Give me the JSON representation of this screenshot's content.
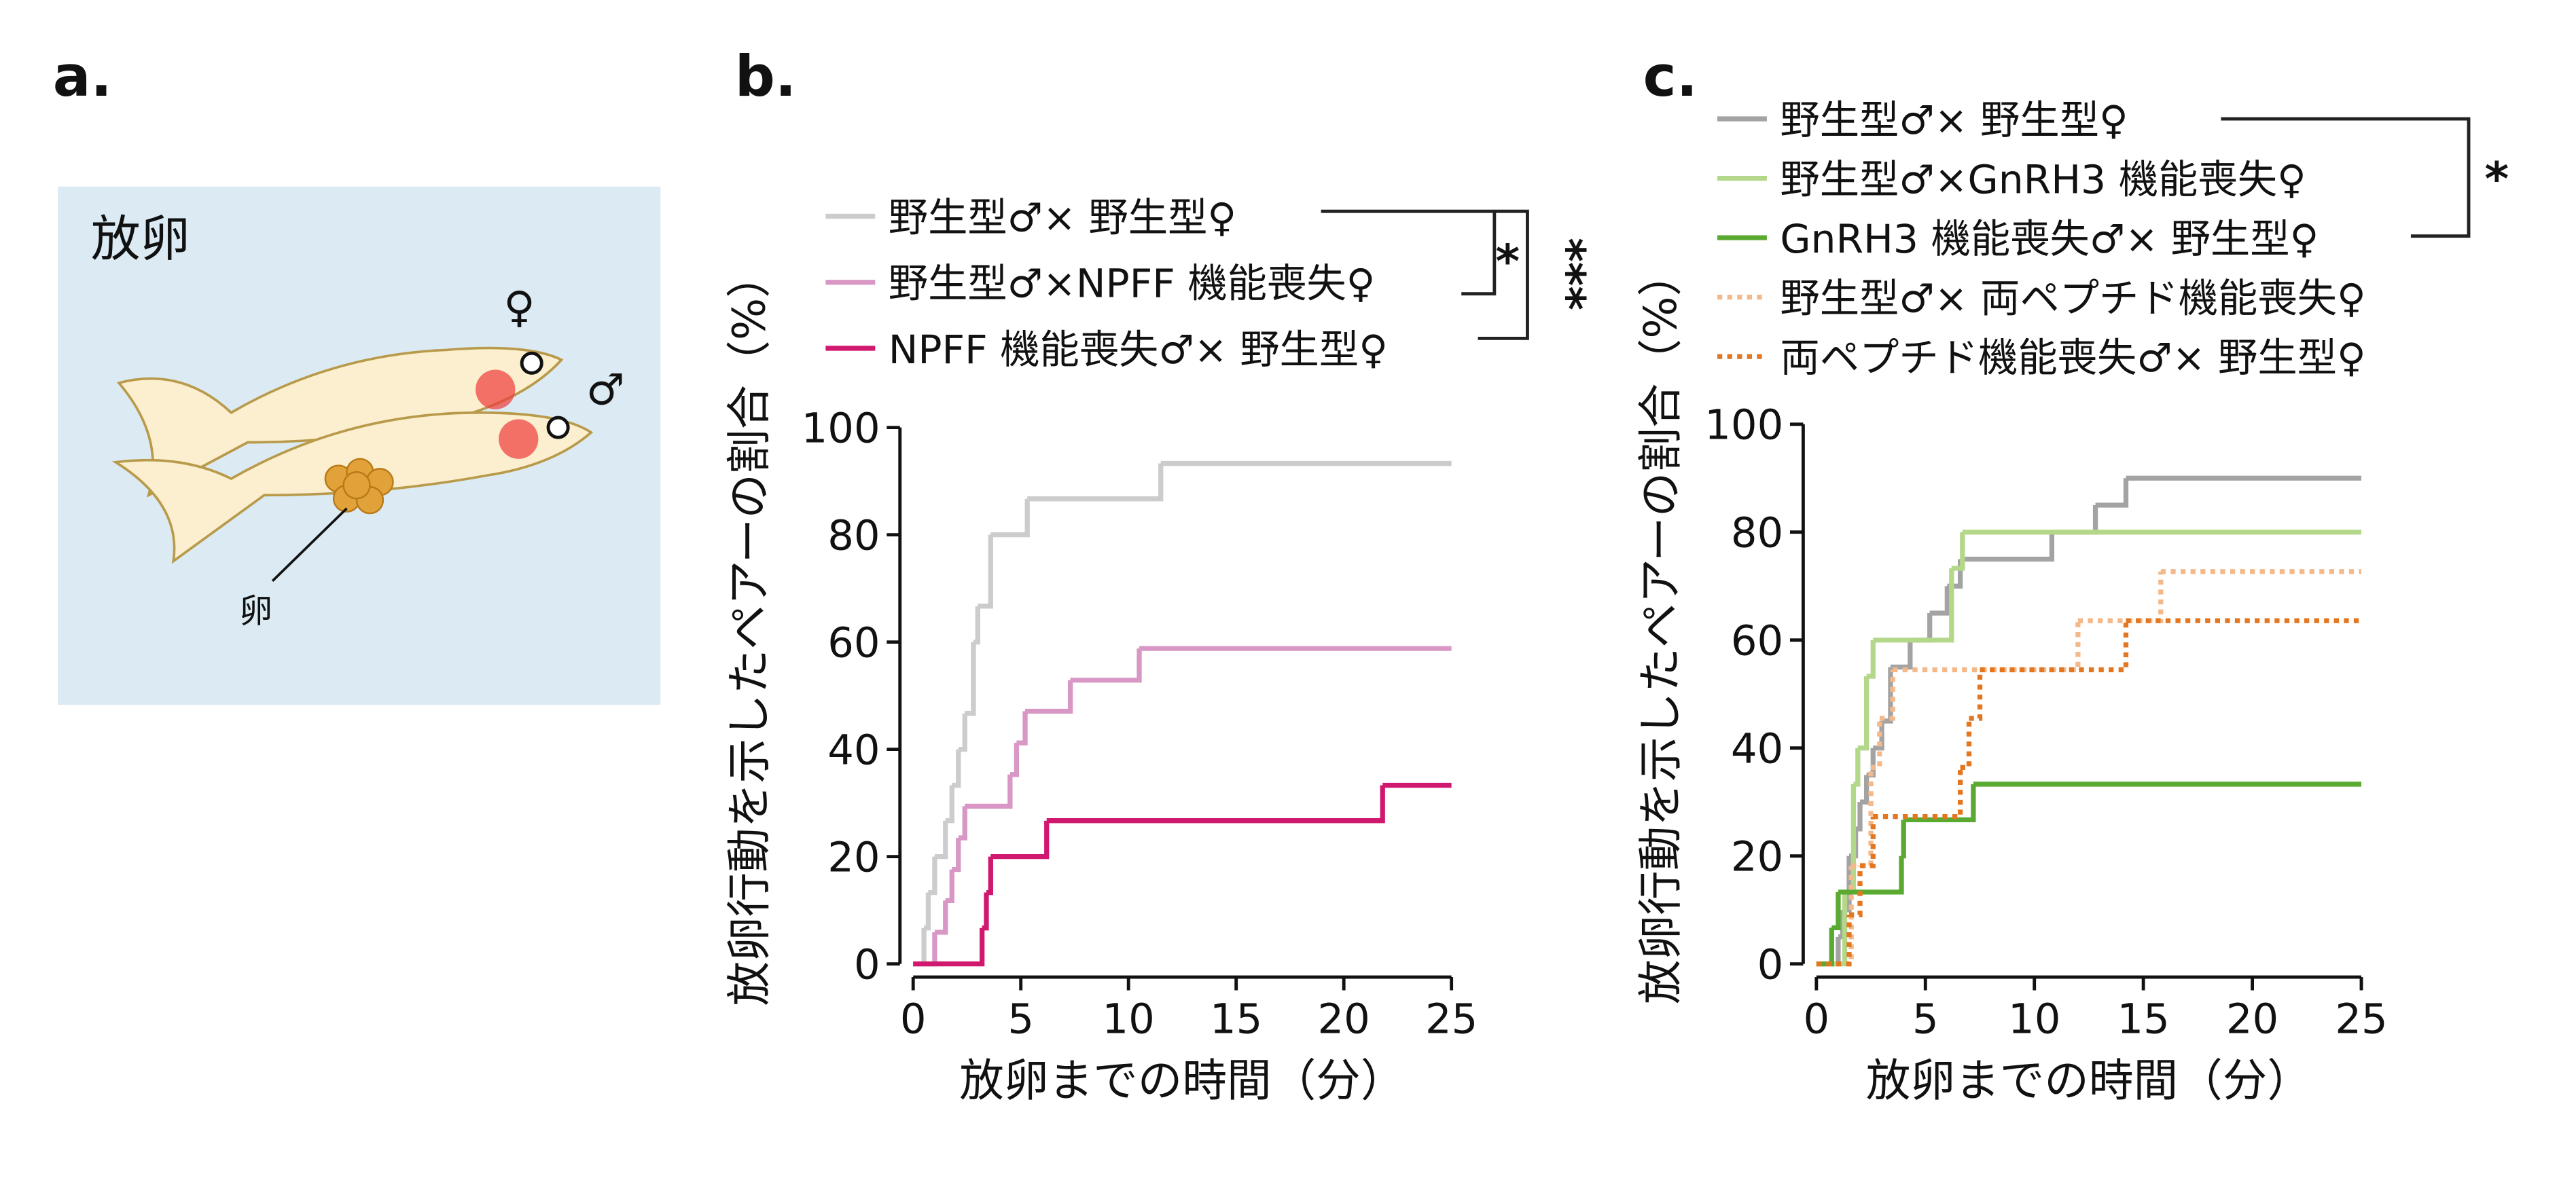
{
  "figure": {
    "panel_labels": [
      "a.",
      "b.",
      "c."
    ],
    "illustration": {
      "title": "放卵",
      "egg_label": "卵",
      "female": "♀",
      "male": "♂"
    }
  },
  "chart_data": [
    {
      "type": "step",
      "y_label": "放卵行動を示したペアーの割合（%）",
      "x_label": "放卵までの時間（分）",
      "xlim": [
        0,
        25
      ],
      "xticks": [
        0,
        5,
        10,
        15,
        20,
        25
      ],
      "ylim": [
        0,
        100
      ],
      "yticks": [
        0,
        20,
        40,
        60,
        80,
        100
      ],
      "annotations": [
        "*",
        "***"
      ],
      "series": [
        {
          "name": "野生型♂× 野生型♀",
          "color": "#cccccc",
          "linestyle": "solid",
          "x": [
            0.5,
            0.7,
            1.0,
            1.5,
            1.8,
            2.1,
            2.4,
            2.8,
            3.0,
            3.6,
            5.3,
            11.5
          ],
          "values": [
            6.7,
            13.3,
            20,
            26.7,
            33.3,
            40,
            46.7,
            60,
            66.7,
            80,
            86.7,
            93.3
          ]
        },
        {
          "name": "野生型♂×NPFF 機能喪失♀",
          "color": "#d897c4",
          "linestyle": "solid",
          "x": [
            1.0,
            1.5,
            1.8,
            2.1,
            2.4,
            4.5,
            4.8,
            5.2,
            7.3,
            10.5
          ],
          "values": [
            5.9,
            11.8,
            17.6,
            23.5,
            29.4,
            35.3,
            41.2,
            47.1,
            52.9,
            58.8
          ]
        },
        {
          "name": "NPFF 機能喪失♂× 野生型♀",
          "color": "#d0186f",
          "linestyle": "solid",
          "x": [
            3.2,
            3.4,
            3.6,
            6.2,
            21.8
          ],
          "values": [
            6.7,
            13.3,
            20,
            26.7,
            33.3
          ]
        }
      ]
    },
    {
      "type": "step",
      "y_label": "放卵行動を示したペアーの割合（%）",
      "x_label": "放卵までの時間（分）",
      "xlim": [
        0,
        25
      ],
      "xticks": [
        0,
        5,
        10,
        15,
        20,
        25
      ],
      "ylim": [
        0,
        100
      ],
      "yticks": [
        0,
        20,
        40,
        60,
        80,
        100
      ],
      "annotations": [
        "*"
      ],
      "series": [
        {
          "name": "野生型♂× 野生型♀",
          "color": "#a3a3a3",
          "linestyle": "solid",
          "x": [
            1.0,
            1.2,
            1.5,
            1.8,
            2.0,
            2.3,
            2.6,
            3.0,
            3.4,
            4.3,
            5.2,
            6.0,
            6.6,
            10.8,
            12.8,
            14.2
          ],
          "values": [
            5,
            10,
            20,
            25,
            30,
            35,
            40,
            45,
            55,
            60,
            65,
            70,
            75,
            80,
            85,
            90
          ]
        },
        {
          "name": "野生型♂×GnRH3 機能喪失♀",
          "color": "#b4d88a",
          "linestyle": "solid",
          "x": [
            1.3,
            1.7,
            1.9,
            2.3,
            2.6,
            6.2,
            6.7
          ],
          "values": [
            13.3,
            33.3,
            40,
            53.3,
            60,
            73.3,
            80
          ]
        },
        {
          "name": "GnRH3 機能喪失♂× 野生型♀",
          "color": "#5aaa32",
          "linestyle": "solid",
          "x": [
            0.7,
            1.0,
            3.9,
            4.0,
            7.2
          ],
          "values": [
            6.7,
            13.3,
            20,
            26.7,
            33.3
          ]
        },
        {
          "name": "野生型♂× 両ペプチド機能喪失♀",
          "color": "#f4b98a",
          "linestyle": "dotted",
          "x": [
            1.6,
            2.5,
            2.9,
            3.5,
            12.0,
            15.8
          ],
          "values": [
            18.2,
            36.4,
            45.5,
            54.5,
            63.6,
            72.7
          ]
        },
        {
          "name": "両ペプチド機能喪失♂× 野生型♀",
          "color": "#e3761f",
          "linestyle": "dotted",
          "x": [
            1.5,
            2.0,
            2.6,
            6.6,
            7.0,
            7.5,
            14.2
          ],
          "values": [
            9.1,
            18.2,
            27.3,
            36.4,
            45.5,
            54.5,
            63.6
          ]
        }
      ]
    }
  ]
}
